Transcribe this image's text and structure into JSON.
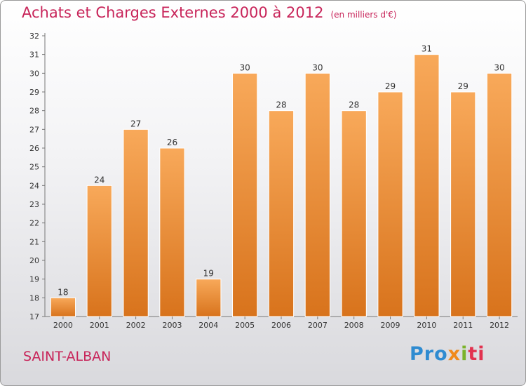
{
  "header": {
    "title": "Achats et Charges Externes 2000 à 2012",
    "unit": "(en milliers d'€)"
  },
  "footer": {
    "commune": "SAINT-ALBAN",
    "logo_parts": [
      "Pro",
      "x",
      "i",
      "ti"
    ]
  },
  "colors": {
    "bar_light": "#f8a95a",
    "bar_dark": "#d8731c",
    "title": "#c8255a"
  },
  "chart_data": {
    "type": "bar",
    "title": "Achats et Charges Externes 2000 à 2012",
    "subtitle": "(en milliers d'€)",
    "xlabel": "",
    "ylabel": "",
    "categories": [
      "2000",
      "2001",
      "2002",
      "2003",
      "2004",
      "2005",
      "2006",
      "2007",
      "2008",
      "2009",
      "2010",
      "2011",
      "2012"
    ],
    "values": [
      18,
      24,
      27,
      26,
      19,
      30,
      28,
      30,
      28,
      29,
      31,
      29,
      30
    ],
    "ylim": [
      17,
      32
    ],
    "yticks": [
      17,
      18,
      19,
      20,
      21,
      22,
      23,
      24,
      25,
      26,
      27,
      28,
      29,
      30,
      31,
      32
    ],
    "grid": false,
    "data_labels": true
  }
}
